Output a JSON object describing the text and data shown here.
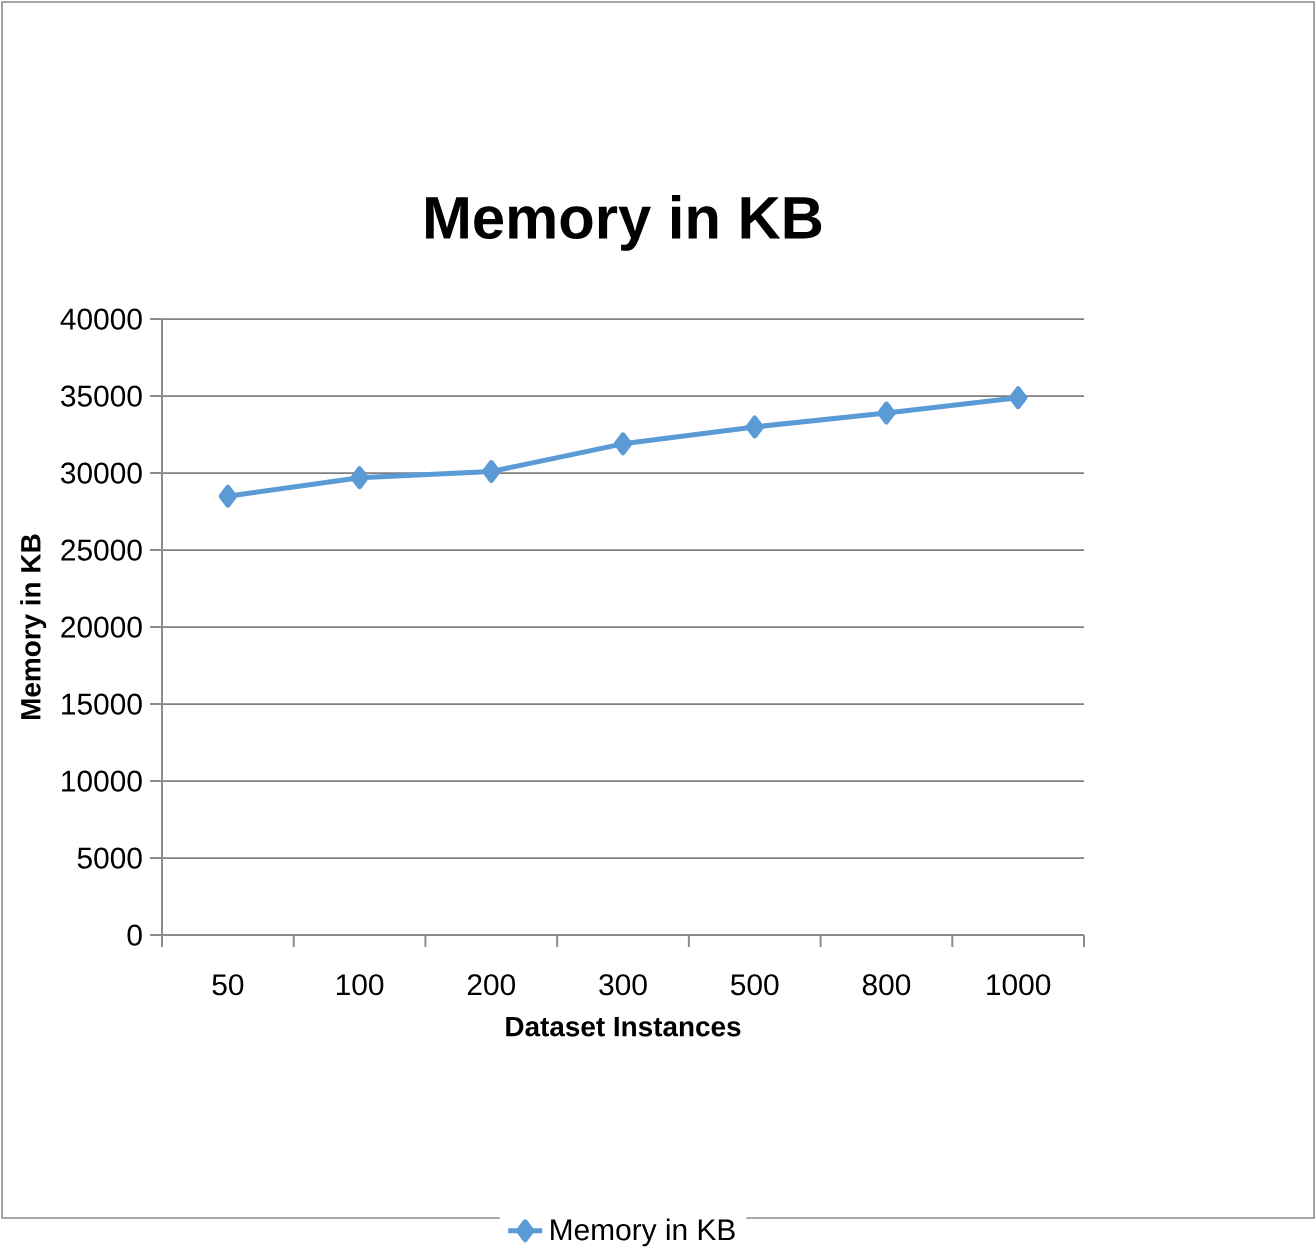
{
  "chart_data": {
    "type": "line",
    "title": "Memory in KB",
    "xlabel": "Dataset Instances",
    "ylabel": "Memory in KB",
    "categories": [
      "50",
      "100",
      "200",
      "300",
      "500",
      "800",
      "1000"
    ],
    "series": [
      {
        "name": "Memory in KB",
        "color": "#5b9bd5",
        "values": [
          28500,
          29700,
          30100,
          31900,
          33000,
          33900,
          34900
        ]
      }
    ],
    "ylim": [
      0,
      40000
    ],
    "yticks": [
      0,
      5000,
      10000,
      15000,
      20000,
      25000,
      30000,
      35000,
      40000
    ],
    "grid": "y",
    "legend": "bottom",
    "marker": "diamond",
    "line_style": "solid"
  }
}
